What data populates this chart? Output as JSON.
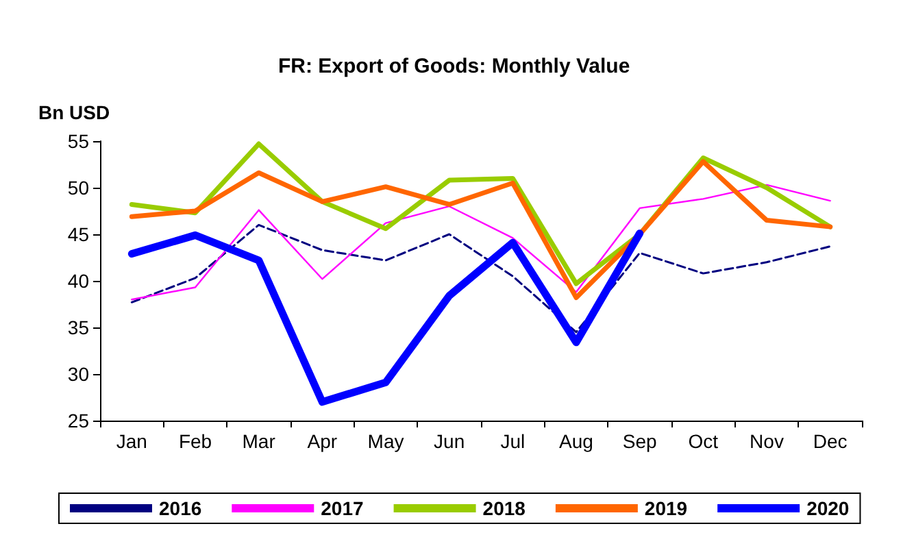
{
  "chart_data": {
    "type": "line",
    "title": "FR: Export of Goods: Monthly Value",
    "ylabel": "Bn USD",
    "categories": [
      "Jan",
      "Feb",
      "Mar",
      "Apr",
      "May",
      "Jun",
      "Jul",
      "Aug",
      "Sep",
      "Oct",
      "Nov",
      "Dec"
    ],
    "ylim": [
      25,
      55
    ],
    "yticks": [
      25,
      30,
      35,
      40,
      45,
      50,
      55
    ],
    "grid": false,
    "legend": "bottom",
    "marker": "none",
    "series": [
      {
        "name": "2016",
        "color": "#000080",
        "line_style": "dashed",
        "values": [
          37.7,
          40.3,
          46,
          43.3,
          42.2,
          45,
          40.5,
          34.5,
          43,
          40.8,
          42,
          43.7
        ]
      },
      {
        "name": "2017",
        "color": "#ff00ff",
        "line_style": "solid",
        "values": [
          38,
          39.3,
          47.6,
          40.2,
          46.2,
          48,
          44.6,
          38.8,
          47.8,
          48.8,
          50.3,
          48.6
        ]
      },
      {
        "name": "2018",
        "color": "#99cc00",
        "line_style": "solid",
        "values": [
          48.2,
          47.3,
          54.7,
          48.5,
          45.6,
          50.8,
          51,
          39.7,
          45,
          53.2,
          50,
          45.8
        ]
      },
      {
        "name": "2019",
        "color": "#ff6600",
        "line_style": "solid",
        "values": [
          46.9,
          47.5,
          51.6,
          48.5,
          50.1,
          48.2,
          50.5,
          38.2,
          45,
          52.8,
          46.5,
          45.8
        ]
      },
      {
        "name": "2020",
        "color": "#0000ff",
        "line_style": "solid",
        "values": [
          42.9,
          44.9,
          42.2,
          27,
          29.1,
          38.4,
          44.1,
          33.4,
          45.1,
          null,
          null,
          null
        ]
      }
    ]
  }
}
